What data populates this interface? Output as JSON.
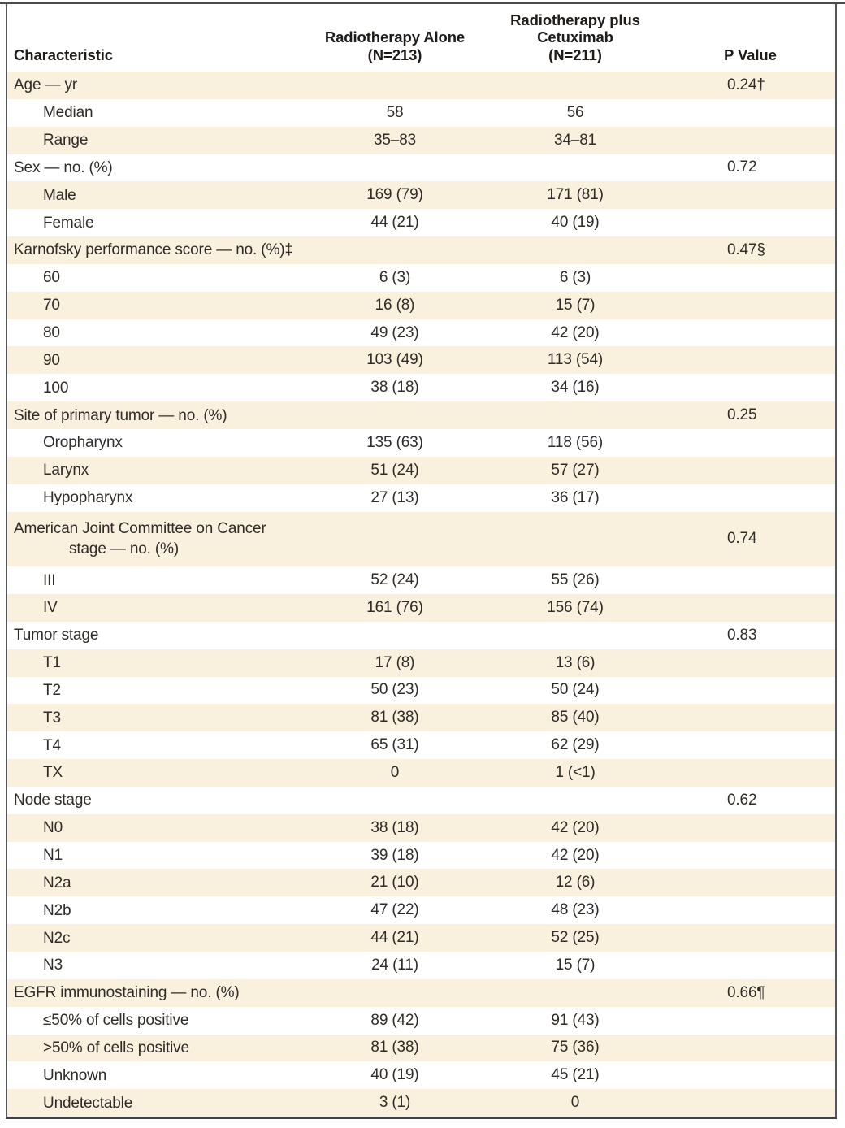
{
  "style": {
    "row_shade_color": "#faf0de",
    "border_color": "#55565a",
    "text_color": "#2f2b27"
  },
  "table": {
    "header": {
      "characteristic": "Characteristic",
      "group1_line1": "Radiotherapy Alone",
      "group1_line2": "(N=213)",
      "group2_line1": "Radiotherapy plus",
      "group2_line2": "Cetuximab",
      "group2_line3": "(N=211)",
      "p_value": "P Value"
    },
    "rows": [
      {
        "label": "Age — yr",
        "indent": 0,
        "rt_alone": "",
        "rt_cetuximab": "",
        "p": "0.24†"
      },
      {
        "label": "Median",
        "indent": 1,
        "rt_alone": "58",
        "rt_cetuximab": "56",
        "p": ""
      },
      {
        "label": "Range",
        "indent": 1,
        "rt_alone": "35–83",
        "rt_cetuximab": "34–81",
        "p": ""
      },
      {
        "label": "Sex — no. (%)",
        "indent": 0,
        "rt_alone": "",
        "rt_cetuximab": "",
        "p": "0.72"
      },
      {
        "label": "Male",
        "indent": 1,
        "rt_alone": "169 (79)",
        "rt_cetuximab": "171 (81)",
        "p": ""
      },
      {
        "label": "Female",
        "indent": 1,
        "rt_alone": "44 (21)",
        "rt_cetuximab": "40 (19)",
        "p": ""
      },
      {
        "label": "Karnofsky performance score — no. (%)‡",
        "indent": 0,
        "rt_alone": "",
        "rt_cetuximab": "",
        "p": "0.47§"
      },
      {
        "label": "60",
        "indent": 1,
        "rt_alone": "6 (3)",
        "rt_cetuximab": "6 (3)",
        "p": ""
      },
      {
        "label": "70",
        "indent": 1,
        "rt_alone": "16 (8)",
        "rt_cetuximab": "15 (7)",
        "p": ""
      },
      {
        "label": "80",
        "indent": 1,
        "rt_alone": "49 (23)",
        "rt_cetuximab": "42 (20)",
        "p": ""
      },
      {
        "label": "90",
        "indent": 1,
        "rt_alone": "103 (49)",
        "rt_cetuximab": "113 (54)",
        "p": ""
      },
      {
        "label": "100",
        "indent": 1,
        "rt_alone": "38 (18)",
        "rt_cetuximab": "34 (16)",
        "p": ""
      },
      {
        "label": "Site of primary tumor — no. (%)",
        "indent": 0,
        "rt_alone": "",
        "rt_cetuximab": "",
        "p": "0.25"
      },
      {
        "label": "Oropharynx",
        "indent": 1,
        "rt_alone": "135 (63)",
        "rt_cetuximab": "118 (56)",
        "p": ""
      },
      {
        "label": "Larynx",
        "indent": 1,
        "rt_alone": "51 (24)",
        "rt_cetuximab": "57 (27)",
        "p": ""
      },
      {
        "label": "Hypopharynx",
        "indent": 1,
        "rt_alone": "27 (13)",
        "rt_cetuximab": "36 (17)",
        "p": ""
      },
      {
        "label": "American Joint Committee on Cancer",
        "label2": "stage — no. (%)",
        "indent": 0,
        "rt_alone": "",
        "rt_cetuximab": "",
        "p": "0.74"
      },
      {
        "label": "III",
        "indent": 1,
        "rt_alone": "52 (24)",
        "rt_cetuximab": "55 (26)",
        "p": ""
      },
      {
        "label": "IV",
        "indent": 1,
        "rt_alone": "161 (76)",
        "rt_cetuximab": "156 (74)",
        "p": ""
      },
      {
        "label": "Tumor stage",
        "indent": 0,
        "rt_alone": "",
        "rt_cetuximab": "",
        "p": "0.83"
      },
      {
        "label": "T1",
        "indent": 1,
        "rt_alone": "17 (8)",
        "rt_cetuximab": "13 (6)",
        "p": ""
      },
      {
        "label": "T2",
        "indent": 1,
        "rt_alone": "50 (23)",
        "rt_cetuximab": "50 (24)",
        "p": ""
      },
      {
        "label": "T3",
        "indent": 1,
        "rt_alone": "81 (38)",
        "rt_cetuximab": "85 (40)",
        "p": ""
      },
      {
        "label": "T4",
        "indent": 1,
        "rt_alone": "65 (31)",
        "rt_cetuximab": "62 (29)",
        "p": ""
      },
      {
        "label": "TX",
        "indent": 1,
        "rt_alone": "0",
        "rt_cetuximab": "1 (<1)",
        "p": ""
      },
      {
        "label": "Node stage",
        "indent": 0,
        "rt_alone": "",
        "rt_cetuximab": "",
        "p": "0.62"
      },
      {
        "label": "N0",
        "indent": 1,
        "rt_alone": "38 (18)",
        "rt_cetuximab": "42 (20)",
        "p": ""
      },
      {
        "label": "N1",
        "indent": 1,
        "rt_alone": "39 (18)",
        "rt_cetuximab": "42 (20)",
        "p": ""
      },
      {
        "label": "N2a",
        "indent": 1,
        "rt_alone": "21 (10)",
        "rt_cetuximab": "12 (6)",
        "p": ""
      },
      {
        "label": "N2b",
        "indent": 1,
        "rt_alone": "47 (22)",
        "rt_cetuximab": "48 (23)",
        "p": ""
      },
      {
        "label": "N2c",
        "indent": 1,
        "rt_alone": "44 (21)",
        "rt_cetuximab": "52 (25)",
        "p": ""
      },
      {
        "label": "N3",
        "indent": 1,
        "rt_alone": "24 (11)",
        "rt_cetuximab": "15 (7)",
        "p": ""
      },
      {
        "label": "EGFR immunostaining — no. (%)",
        "indent": 0,
        "rt_alone": "",
        "rt_cetuximab": "",
        "p": "0.66¶"
      },
      {
        "label": "≤50% of cells positive",
        "indent": 1,
        "rt_alone": "89 (42)",
        "rt_cetuximab": "91 (43)",
        "p": ""
      },
      {
        "label": ">50% of cells positive",
        "indent": 1,
        "rt_alone": "81 (38)",
        "rt_cetuximab": "75 (36)",
        "p": ""
      },
      {
        "label": "Unknown",
        "indent": 1,
        "rt_alone": "40 (19)",
        "rt_cetuximab": "45 (21)",
        "p": ""
      },
      {
        "label": "Undetectable",
        "indent": 1,
        "rt_alone": "3 (1)",
        "rt_cetuximab": "0",
        "p": ""
      }
    ]
  }
}
